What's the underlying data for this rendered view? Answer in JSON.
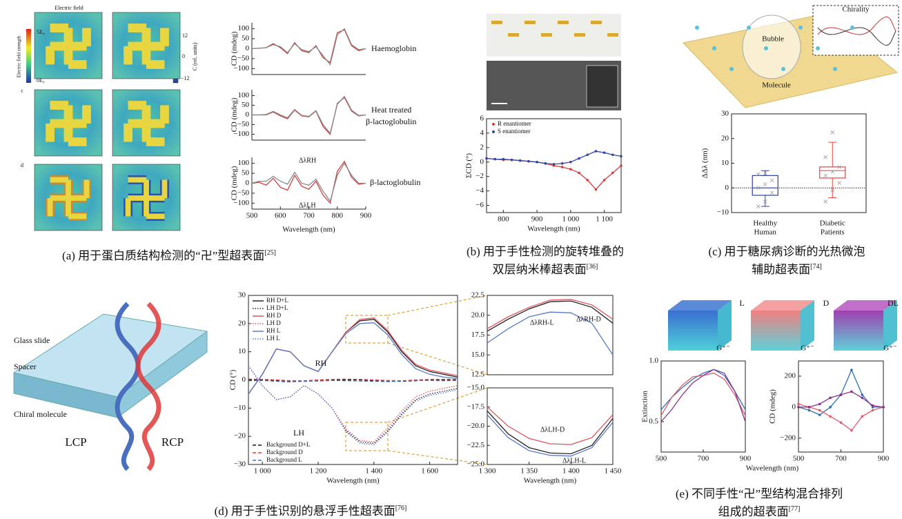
{
  "figure": {
    "captions": [
      {
        "lines": [
          "(a) 用于蛋白质结构检测的“卍”型超表面"
        ],
        "ref": "[25]"
      },
      {
        "lines": [
          "(b) 用于手性检测的旋转堆叠的",
          "双层纳米棒超表面"
        ],
        "ref": "[36]"
      },
      {
        "lines": [
          "(c) 用于糖尿病诊断的光热微泡",
          "辅助超表面"
        ],
        "ref": "[74]"
      },
      {
        "lines": [
          "(d) 用于手性识别的悬浮手性超表面"
        ],
        "ref": "[76]"
      },
      {
        "lines": [
          "(e) 不同手性“卍”型结构混合排列",
          "组成的超表面"
        ],
        "ref": "[77]"
      }
    ],
    "annotations": [
      "Electric field",
      "c",
      "d",
      "5E₀",
      "0E₀",
      "Electric field strength",
      "12",
      "0",
      "−12",
      "C (rel. units)",
      "Chirality",
      "Bubble",
      "Molecule",
      "Glass slide",
      "Spacer",
      "Chiral molecule",
      "LCP",
      "RCP",
      "L",
      "G⁺⁻",
      "D",
      "G⁺⁻",
      "DL",
      "G⁺⁻"
    ]
  },
  "chart_data": [
    {
      "type": "line",
      "ylabel": "CD (mdeg)",
      "annotations": [
        "Haemoglobin"
      ],
      "xlim": [
        500,
        900
      ],
      "ylim": [
        -130,
        130
      ],
      "yticks": [
        {
          "value": -100,
          "label": "−100"
        },
        {
          "value": -50,
          "label": "−50"
        },
        0,
        50,
        100
      ],
      "x": [
        500,
        525,
        550,
        575,
        600,
        625,
        650,
        675,
        700,
        725,
        750,
        775,
        800,
        825,
        850,
        875,
        900
      ],
      "series": [
        {
          "color": "#d23c3c",
          "values": [
            0,
            2,
            5,
            25,
            5,
            -25,
            30,
            -10,
            -20,
            15,
            -45,
            -70,
            80,
            95,
            15,
            -10,
            0
          ]
        },
        {
          "color": "#888888",
          "values": [
            0,
            2,
            5,
            20,
            10,
            -20,
            25,
            -5,
            -15,
            10,
            -35,
            -80,
            70,
            100,
            20,
            -5,
            0
          ]
        }
      ]
    },
    {
      "type": "line",
      "ylabel": "CD (mdeg)",
      "annotations": [
        "Heat treated",
        "β-lactoglobulin"
      ],
      "xlim": [
        500,
        900
      ],
      "ylim": [
        -130,
        130
      ],
      "yticks": [
        {
          "value": -100,
          "label": "−100"
        },
        {
          "value": -50,
          "label": "−50"
        },
        0,
        50,
        100
      ],
      "x": [
        500,
        525,
        550,
        575,
        600,
        625,
        650,
        675,
        700,
        725,
        750,
        775,
        800,
        825,
        850,
        875,
        900
      ],
      "series": [
        {
          "color": "#d23c3c",
          "values": [
            0,
            0,
            0,
            15,
            -5,
            -20,
            25,
            -5,
            -10,
            20,
            -60,
            -100,
            60,
            90,
            20,
            -5,
            0
          ]
        },
        {
          "color": "#888888",
          "values": [
            0,
            0,
            2,
            18,
            0,
            -15,
            28,
            -2,
            -8,
            22,
            -50,
            -95,
            55,
            95,
            25,
            -3,
            0
          ]
        }
      ]
    },
    {
      "type": "line",
      "ylabel": "CD (mdeg)",
      "xlabel": "Wavelength (nm)",
      "annotations": [
        "β-lactoglobulin",
        "ΔλRH",
        "ΔλLH"
      ],
      "xlim": [
        500,
        900
      ],
      "ylim": [
        -130,
        130
      ],
      "xticks": [
        500,
        600,
        700,
        800,
        900
      ],
      "yticks": [
        {
          "value": -100,
          "label": "−100"
        },
        {
          "value": -50,
          "label": "−50"
        },
        0,
        50,
        100
      ],
      "x": [
        500,
        525,
        550,
        575,
        600,
        625,
        650,
        675,
        700,
        725,
        750,
        775,
        800,
        825,
        850,
        875,
        900
      ],
      "series": [
        {
          "color": "#d23c3c",
          "values": [
            0,
            5,
            -10,
            25,
            -20,
            -35,
            40,
            -15,
            -30,
            10,
            -60,
            -100,
            60,
            110,
            30,
            -5,
            0
          ]
        },
        {
          "color": "#888888",
          "values": [
            0,
            10,
            10,
            35,
            10,
            -5,
            55,
            0,
            -10,
            20,
            -40,
            -90,
            40,
            100,
            40,
            0,
            0
          ]
        }
      ]
    },
    {
      "type": "line",
      "ylabel": "ΣCD (°)",
      "xlabel": "Wavelength (nm)",
      "markers": true,
      "legend": "upper left",
      "xlim": [
        750,
        1150
      ],
      "ylim": [
        -7,
        6
      ],
      "xticks": [
        800,
        900,
        {
          "value": 1000,
          "label": "1 000"
        },
        {
          "value": 1100,
          "label": "1 100"
        }
      ],
      "yticks": [
        {
          "value": -6,
          "label": "−6"
        },
        {
          "value": -4,
          "label": "−4"
        },
        {
          "value": -2,
          "label": "−2"
        },
        0,
        2,
        4,
        6
      ],
      "x": [
        750,
        775,
        800,
        825,
        850,
        875,
        900,
        925,
        950,
        975,
        1000,
        1025,
        1050,
        1075,
        1100,
        1125,
        1150
      ],
      "series": [
        {
          "name": "R enantiomer",
          "color": "#d63a3a",
          "values": [
            0.5,
            0.4,
            0.3,
            0.3,
            0.2,
            0.1,
            0,
            -0.2,
            -0.5,
            -0.7,
            -1,
            -1.5,
            -2.5,
            -3.8,
            -2.5,
            -1.5,
            -0.5
          ]
        },
        {
          "name": "S enantiomer",
          "color": "#2f45a8",
          "values": [
            0.5,
            0.4,
            0.4,
            0.3,
            0.2,
            0.1,
            0,
            -0.2,
            -0.3,
            -0.2,
            0,
            0.5,
            1,
            1.5,
            1.3,
            1,
            0.8
          ]
        }
      ]
    },
    {
      "type": "box",
      "ylabel": "ΔΔλ (nm)",
      "zero_line": true,
      "ylim": [
        -10,
        30
      ],
      "yticks": [
        {
          "value": -10,
          "label": "−10"
        },
        0,
        10,
        20,
        30
      ],
      "categories": [
        [
          "Healthy",
          "Human"
        ],
        [
          "Diabetic",
          "Patients"
        ]
      ],
      "boxes": [
        {
          "whislo": -7.5,
          "q1": -3,
          "med": 0,
          "q3": 5,
          "whishi": 7,
          "color": "#2f3f9a",
          "points": [
            -7.5,
            -5.5,
            -2,
            0,
            1.5,
            3,
            5.5,
            6
          ]
        },
        {
          "whislo": -4,
          "q1": 4,
          "med": 7,
          "q3": 8.5,
          "whishi": 18.5,
          "color": "#e8403c",
          "points": [
            -5.5,
            -1,
            2,
            5,
            6.5,
            8.5,
            12.5,
            22.5
          ]
        }
      ]
    },
    {
      "type": "line",
      "ylabel": "CD (°)",
      "xlabel": "Wavelength (nm)",
      "annotations": [
        "RH",
        "LH"
      ],
      "xlim": [
        950,
        1700
      ],
      "ylim": [
        -30,
        30
      ],
      "xticks": [
        {
          "value": 1000,
          "label": "1 000"
        },
        {
          "value": 1200,
          "label": "1 200"
        },
        {
          "value": 1400,
          "label": "1 400"
        },
        {
          "value": 1600,
          "label": "1 600"
        }
      ],
      "yticks": [
        {
          "value": -30,
          "label": "−30"
        },
        {
          "value": -20,
          "label": "−20"
        },
        {
          "value": -10,
          "label": "−10"
        },
        0,
        10,
        20,
        30
      ],
      "x": [
        950,
        1000,
        1050,
        1100,
        1150,
        1200,
        1250,
        1300,
        1350,
        1400,
        1450,
        1500,
        1550,
        1600,
        1650,
        1700
      ],
      "series": [
        {
          "name": "RH D+L",
          "color": "#222222",
          "style": "solid",
          "legend": "upper left",
          "values": [
            -5,
            2,
            11,
            10,
            5,
            3,
            10,
            17,
            21,
            21.5,
            17,
            10,
            5,
            3,
            2,
            1
          ]
        },
        {
          "name": "LH D+L",
          "color": "#222222",
          "style": "dotted",
          "legend": "upper left",
          "values": [
            5,
            -2,
            -7,
            -6,
            -2,
            -5,
            -10,
            -18,
            -22,
            -22.5,
            -18,
            -12,
            -7,
            -5,
            -4,
            -3
          ]
        },
        {
          "name": "RH D",
          "color": "#e0505a",
          "style": "solid",
          "legend": "upper left",
          "values": [
            -5,
            2,
            11,
            10,
            5,
            3,
            10,
            17,
            21.5,
            22,
            17.5,
            10.5,
            5.5,
            3.5,
            2.5,
            1.5
          ]
        },
        {
          "name": "LH D",
          "color": "#e0505a",
          "style": "dotted",
          "legend": "upper left",
          "values": [
            5,
            -2,
            -7,
            -6,
            -2,
            -5,
            -10,
            -17.5,
            -21.5,
            -22,
            -17,
            -11,
            -6,
            -4,
            -3,
            -2
          ]
        },
        {
          "name": "RH L",
          "color": "#5a78c8",
          "style": "solid",
          "legend": "upper left",
          "values": [
            -5,
            2,
            11,
            10,
            5,
            3,
            10,
            16.5,
            20,
            20.3,
            16,
            9,
            4,
            2,
            1,
            0.5
          ]
        },
        {
          "name": "LH L",
          "color": "#5a78c8",
          "style": "dotted",
          "legend": "upper left",
          "values": [
            5,
            -2,
            -7,
            -6,
            -2,
            -5,
            -10,
            -18.5,
            -22.5,
            -23,
            -18.5,
            -12.5,
            -7.5,
            -5.5,
            -4.5,
            -3.5
          ]
        },
        {
          "name": "Background D+L",
          "color": "#111111",
          "style": "dashed",
          "legend": "lower left",
          "values": [
            0,
            0,
            -0.3,
            -0.5,
            -0.5,
            -0.3,
            0,
            0,
            0,
            -0.3,
            -0.5,
            -0.5,
            -0.3,
            0,
            0,
            0
          ]
        },
        {
          "name": "Background D",
          "color": "#e03a3a",
          "style": "dashed",
          "legend": "lower left",
          "values": [
            0.3,
            0.2,
            0,
            -0.3,
            -0.3,
            0,
            0.2,
            0.3,
            0.2,
            0,
            -0.2,
            -0.3,
            0,
            0.2,
            0.2,
            0.2
          ]
        },
        {
          "name": "Background L",
          "color": "#4a6fc0",
          "style": "dashed",
          "legend": "lower left",
          "values": [
            -0.3,
            -0.2,
            -0.5,
            -0.7,
            -0.5,
            -0.4,
            -0.2,
            -0.3,
            -0.4,
            -0.5,
            -0.6,
            -0.4,
            -0.2,
            -0.2,
            -0.3,
            -0.2
          ]
        }
      ]
    },
    {
      "type": "line",
      "annotations": [
        "ΔλRH-L",
        "ΔλRH-D"
      ],
      "xlim": [
        1300,
        1450
      ],
      "ylim": [
        12.5,
        22.5
      ],
      "yticks": [
        12.5,
        {
          "value": 15,
          "label": "15.0"
        },
        17.5,
        {
          "value": 20,
          "label": "20.0"
        },
        22.5
      ],
      "x": [
        1300,
        1325,
        1350,
        1375,
        1400,
        1425,
        1450
      ],
      "series": [
        {
          "color": "#222222",
          "values": [
            18,
            19.5,
            20.8,
            21.7,
            21.8,
            21,
            19
          ]
        },
        {
          "color": "#e0505a",
          "values": [
            18.3,
            19.8,
            21,
            21.9,
            22,
            21.3,
            19.5
          ]
        },
        {
          "color": "#5a78c8",
          "values": [
            16.5,
            18.3,
            19.8,
            20.4,
            20.3,
            19,
            15
          ]
        }
      ]
    },
    {
      "type": "line",
      "xlabel": "Wavelength (nm)",
      "annotations": [
        "ΔλLH-D",
        "ΔλLH-L"
      ],
      "xlim": [
        1300,
        1450
      ],
      "ylim": [
        -25,
        -15
      ],
      "xticks": [
        {
          "value": 1300,
          "label": "1 300"
        },
        {
          "value": 1350,
          "label": "1 350"
        },
        {
          "value": 1400,
          "label": "1 400"
        },
        {
          "value": 1450,
          "label": "1 450"
        }
      ],
      "yticks": [
        {
          "value": -25,
          "label": "−25.0"
        },
        {
          "value": -22.5,
          "label": "−22.5"
        },
        {
          "value": -20,
          "label": "−20.0"
        },
        {
          "value": -17.5,
          "label": "−17.5"
        },
        {
          "value": -15,
          "label": "−15.0"
        }
      ],
      "x": [
        1300,
        1325,
        1350,
        1375,
        1400,
        1425,
        1450
      ],
      "series": [
        {
          "color": "#222222",
          "values": [
            -18,
            -21,
            -22.8,
            -23.5,
            -23.6,
            -22.5,
            -19
          ]
        },
        {
          "color": "#e0505a",
          "values": [
            -17.5,
            -20,
            -21.6,
            -22.3,
            -22.4,
            -21.5,
            -18.5
          ]
        },
        {
          "color": "#5a78c8",
          "values": [
            -18.5,
            -21.5,
            -23.2,
            -23.8,
            -23.9,
            -22.8,
            -19.5
          ]
        }
      ]
    },
    {
      "type": "line",
      "ylabel": "Extinction",
      "xlabel": "Wavelength (nm)",
      "xlim": [
        500,
        900
      ],
      "ylim": [
        0.25,
        1.0
      ],
      "xticks": [
        500,
        700,
        900
      ],
      "yticks": [
        0.5,
        {
          "value": 1,
          "label": "1.0"
        }
      ],
      "x": [
        500,
        550,
        600,
        650,
        700,
        750,
        800,
        850,
        900
      ],
      "series": [
        {
          "color": "#2a6db5",
          "values": [
            0.6,
            0.7,
            0.78,
            0.85,
            0.9,
            0.93,
            0.88,
            0.75,
            0.6
          ]
        },
        {
          "color": "#e05a6a",
          "values": [
            0.55,
            0.7,
            0.8,
            0.87,
            0.88,
            0.9,
            0.85,
            0.72,
            0.55
          ]
        },
        {
          "color": "#8a2f8a",
          "values": [
            0.5,
            0.6,
            0.72,
            0.82,
            0.88,
            0.93,
            0.9,
            0.75,
            0.5
          ]
        }
      ]
    },
    {
      "type": "line",
      "ylabel": "CD (mdeg)",
      "markers": true,
      "xlim": [
        500,
        900
      ],
      "ylim": [
        -290,
        298
      ],
      "xticks": [
        500,
        700,
        900
      ],
      "yticks": [
        {
          "value": -200,
          "label": "−200"
        },
        0,
        200
      ],
      "x": [
        500,
        550,
        600,
        650,
        700,
        750,
        800,
        850,
        900
      ],
      "series": [
        {
          "color": "#2a6db5",
          "values": [
            0,
            -20,
            -50,
            0,
            80,
            240,
            80,
            0,
            0
          ]
        },
        {
          "color": "#e05a6a",
          "values": [
            20,
            0,
            -20,
            -60,
            -100,
            -150,
            -60,
            -20,
            0
          ]
        },
        {
          "color": "#8a2f8a",
          "values": [
            0,
            0,
            20,
            60,
            80,
            100,
            60,
            10,
            0
          ]
        }
      ]
    }
  ]
}
